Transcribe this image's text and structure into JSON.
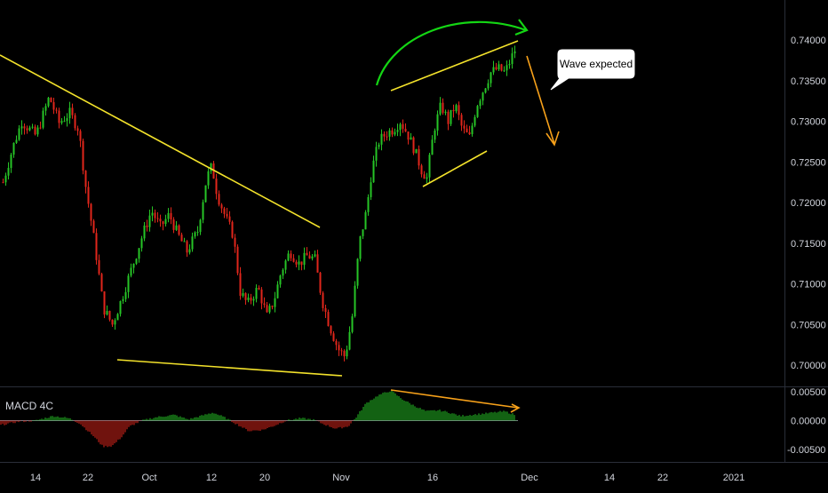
{
  "chart_data": [
    {
      "type": "candlestick",
      "title": "",
      "ylabel": "",
      "ylim": [
        0.6985,
        0.7445
      ],
      "y_ticks": [
        "0.74000",
        "0.73500",
        "0.73000",
        "0.72500",
        "0.72000",
        "0.71500",
        "0.71000",
        "0.70500",
        "0.70000"
      ],
      "x_ticks": [
        "14",
        "22",
        "Oct",
        "12",
        "20",
        "Nov",
        "16",
        "Dec",
        "14",
        "22",
        "2021"
      ],
      "colors": {
        "up": "#26c426",
        "down": "#e0261b",
        "background": "#000000",
        "axis_text": "#d1d4dc"
      },
      "annotations": [
        {
          "kind": "trendline",
          "color": "#f3e22b",
          "from": [
            "Sep 02",
            0.7385
          ],
          "to": [
            "Nov 01",
            0.7175
          ]
        },
        {
          "kind": "trendline",
          "color": "#f3e22b",
          "from": [
            "Sep 26",
            0.7007
          ],
          "to": [
            "Nov 01",
            0.6988
          ]
        },
        {
          "kind": "trendline",
          "color": "#f3e22b",
          "from": [
            "Nov 08",
            0.7338
          ],
          "to": [
            "Nov 30",
            0.74
          ]
        },
        {
          "kind": "trendline",
          "color": "#f3e22b",
          "from": [
            "Nov 16",
            0.722
          ],
          "to": [
            "Nov 24",
            0.7265
          ]
        },
        {
          "kind": "curved-arrow",
          "color": "#14d614"
        },
        {
          "kind": "arrow",
          "color": "#f7a11a",
          "direction": "down"
        },
        {
          "kind": "callout",
          "text": "Wave expected"
        }
      ]
    },
    {
      "type": "histogram",
      "title": "MACD 4C",
      "ylim": [
        -0.0062,
        0.0058
      ],
      "y_ticks": [
        "0.00500",
        "0.00000",
        "-0.00500"
      ],
      "colors": {
        "positive": "#26c426",
        "negative": "#e0261b"
      },
      "annotations": [
        {
          "kind": "divergence-line",
          "color": "#f7a11a"
        }
      ]
    }
  ]
}
